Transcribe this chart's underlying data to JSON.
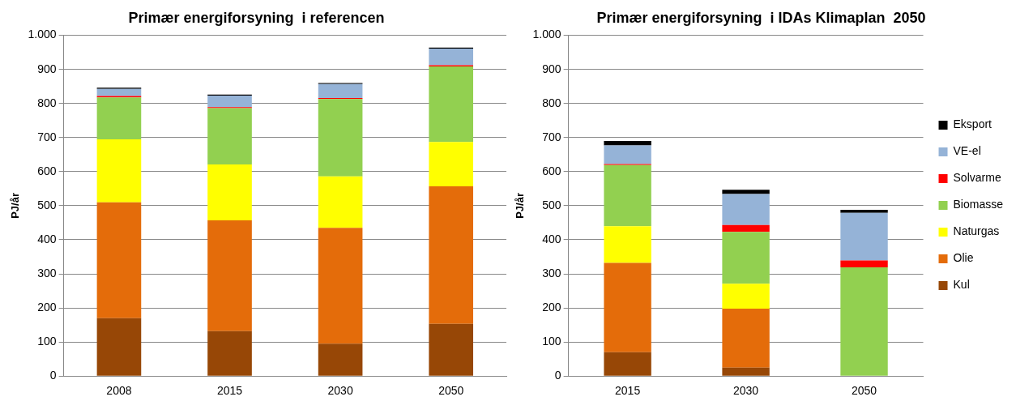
{
  "chart_data": [
    {
      "type": "bar",
      "stacked": true,
      "title": "Primær energiforsyning  i referencen",
      "ylabel": "PJ/år",
      "categories": [
        "2008",
        "2015",
        "2030",
        "2050"
      ],
      "series": [
        {
          "color": "#974706",
          "values": [
            170,
            132,
            95,
            153
          ]
        },
        {
          "color": "#e46c0a",
          "values": [
            340,
            325,
            340,
            404
          ]
        },
        {
          "color": "#ffff00",
          "values": [
            185,
            164,
            151,
            130
          ]
        },
        {
          "color": "#92d050",
          "values": [
            123,
            165,
            227,
            222
          ]
        },
        {
          "color": "#ff0000",
          "values": [
            4,
            3,
            3,
            3
          ]
        },
        {
          "color": "#95b3d7",
          "values": [
            21,
            34,
            41,
            49
          ]
        },
        {
          "color": "#000000",
          "values": [
            3,
            3,
            3,
            3
          ]
        }
      ],
      "ylim": [
        0,
        1000
      ],
      "yticks": [
        0,
        100,
        200,
        300,
        400,
        500,
        600,
        700,
        800,
        900,
        {
          "value": 1000,
          "label": "1.000"
        }
      ],
      "grid": "y",
      "legend": false
    },
    {
      "type": "bar",
      "stacked": true,
      "title": "Primær energiforsyning  i IDAs Klimaplan  2050",
      "ylabel": "PJ/år",
      "categories": [
        "2015",
        "2030",
        "2050"
      ],
      "series": [
        {
          "name": "Kul",
          "color": "#974706",
          "values": [
            70,
            25,
            0
          ]
        },
        {
          "name": "Olie",
          "color": "#e46c0a",
          "values": [
            262,
            173,
            0
          ]
        },
        {
          "name": "Naturgas",
          "color": "#ffff00",
          "values": [
            108,
            73,
            0
          ]
        },
        {
          "name": "Biomasse",
          "color": "#92d050",
          "values": [
            179,
            152,
            319
          ]
        },
        {
          "name": "Solvarme",
          "color": "#ff0000",
          "values": [
            3,
            20,
            20
          ]
        },
        {
          "name": "VE-el",
          "color": "#95b3d7",
          "values": [
            55,
            91,
            140
          ]
        },
        {
          "name": "Eksport",
          "color": "#000000",
          "values": [
            13,
            13,
            9
          ]
        }
      ],
      "ylim": [
        0,
        1000
      ],
      "yticks": [
        0,
        100,
        200,
        300,
        400,
        500,
        600,
        700,
        800,
        900,
        {
          "value": 1000,
          "label": "1.000"
        }
      ],
      "grid": "y",
      "legend": "right"
    }
  ]
}
